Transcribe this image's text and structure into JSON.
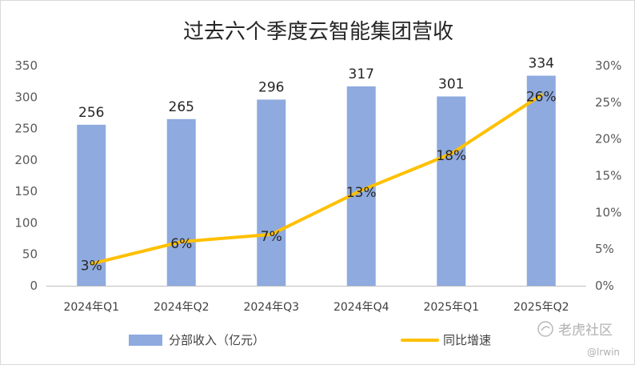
{
  "chart_data": {
    "type": "bar",
    "title": "过去六个季度云智能集团营收",
    "categories": [
      "2024年Q1",
      "2024年Q2",
      "2024年Q3",
      "2024年Q4",
      "2025年Q1",
      "2025年Q2"
    ],
    "series": [
      {
        "name": "分部收入（亿元）",
        "type": "bar",
        "axis": "left",
        "color": "#8eaadf",
        "values": [
          256,
          265,
          296,
          317,
          301,
          334
        ],
        "labels": [
          "256",
          "265",
          "296",
          "317",
          "301",
          "334"
        ]
      },
      {
        "name": "同比增速",
        "type": "line",
        "axis": "right",
        "color": "#ffc000",
        "values": [
          0.03,
          0.06,
          0.07,
          0.13,
          0.18,
          0.26
        ],
        "labels": [
          "3%",
          "6%",
          "7%",
          "13%",
          "18%",
          "26%"
        ]
      }
    ],
    "y_left": {
      "min": 0,
      "max": 350,
      "ticks": [
        "0",
        "50",
        "100",
        "150",
        "200",
        "250",
        "300",
        "350"
      ]
    },
    "y_right": {
      "min": 0,
      "max": 0.3,
      "ticks": [
        "0%",
        "5%",
        "10%",
        "15%",
        "20%",
        "25%",
        "30%"
      ]
    },
    "legend_position": "bottom",
    "grid": false
  },
  "watermark": {
    "text": "老虎社区",
    "user": "@lrwin"
  }
}
